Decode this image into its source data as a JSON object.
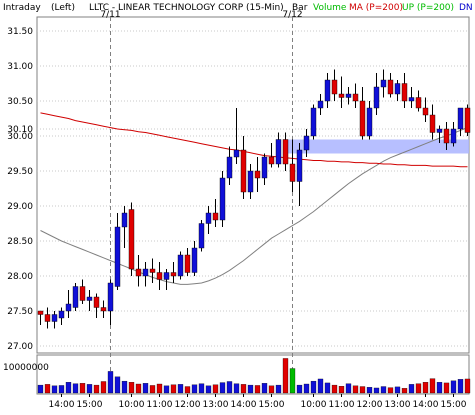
{
  "header": {
    "interval": "Intraday",
    "axis_side": "(Left)",
    "title": "LLTC - LINEAR TECHNOLOGY CORP (15-Min)",
    "bar_label": "Bar",
    "volume_label": "Volume",
    "ma_label": "MA (P=200)",
    "up_label": "UP (P=200)",
    "dn_label": "DN"
  },
  "colors": {
    "up_candle": "#1010d8",
    "down_candle": "#e00000",
    "ma": "#d00000",
    "up_band": "#808080",
    "band_fill": "#aab4ff",
    "volume_green": "#00bb00",
    "grid": "#c8c8c8",
    "separator": "#808080"
  },
  "chart_data": {
    "type": "candlestick",
    "title": "LLTC - LINEAR TECHNOLOGY CORP (15-Min)",
    "ylim": [
      26.9,
      31.7
    ],
    "yticks": [
      "31.50",
      "31.00",
      "30.50",
      "30.10",
      "30.00",
      "29.50",
      "29.00",
      "28.50",
      "28.00",
      "27.50",
      "27.00"
    ],
    "ytick_values": [
      31.5,
      31.0,
      30.5,
      30.1,
      30.0,
      29.5,
      29.0,
      28.5,
      28.0,
      27.5,
      27.0
    ],
    "xticks": [
      "14:00",
      "15:00",
      "10:00",
      "11:00",
      "12:00",
      "13:00",
      "14:00",
      "15:00",
      "10:00",
      "11:00",
      "12:00",
      "13:00",
      "14:00",
      "15:00"
    ],
    "xtick_bars": [
      3,
      7,
      13,
      17,
      21,
      25,
      29,
      33,
      39,
      43,
      47,
      51,
      55,
      59
    ],
    "session_markers": [
      {
        "label": "7/11",
        "bar": 10
      },
      {
        "label": "7/12",
        "bar": 36
      }
    ],
    "candles": [
      [
        27.5,
        27.48,
        27.3,
        27.45
      ],
      [
        27.45,
        27.55,
        27.25,
        27.35
      ],
      [
        27.35,
        27.5,
        27.25,
        27.45
      ],
      [
        27.4,
        27.55,
        27.3,
        27.5
      ],
      [
        27.5,
        27.8,
        27.4,
        27.6
      ],
      [
        27.55,
        27.9,
        27.5,
        27.85
      ],
      [
        27.85,
        27.95,
        27.6,
        27.65
      ],
      [
        27.65,
        27.8,
        27.5,
        27.7
      ],
      [
        27.7,
        27.75,
        27.4,
        27.55
      ],
      [
        27.55,
        27.65,
        27.4,
        27.5
      ],
      [
        27.5,
        27.95,
        27.3,
        27.9
      ],
      [
        27.85,
        28.9,
        27.8,
        28.7
      ],
      [
        28.7,
        29.0,
        28.4,
        28.9
      ],
      [
        28.95,
        29.05,
        28.0,
        28.1
      ],
      [
        28.1,
        28.3,
        27.85,
        28.0
      ],
      [
        28.0,
        28.2,
        27.85,
        28.1
      ],
      [
        28.1,
        28.25,
        27.9,
        28.05
      ],
      [
        28.05,
        28.2,
        27.8,
        27.95
      ],
      [
        27.95,
        28.1,
        27.8,
        28.05
      ],
      [
        28.05,
        28.2,
        27.9,
        28.0
      ],
      [
        28.0,
        28.35,
        27.95,
        28.3
      ],
      [
        28.3,
        28.4,
        28.0,
        28.05
      ],
      [
        28.05,
        28.5,
        28.0,
        28.4
      ],
      [
        28.4,
        28.8,
        28.35,
        28.75
      ],
      [
        28.75,
        29.0,
        28.6,
        28.9
      ],
      [
        28.9,
        29.1,
        28.7,
        28.8
      ],
      [
        28.8,
        29.5,
        28.7,
        29.4
      ],
      [
        29.4,
        29.85,
        29.3,
        29.7
      ],
      [
        29.7,
        30.4,
        29.6,
        29.8
      ],
      [
        29.8,
        30.0,
        29.1,
        29.2
      ],
      [
        29.2,
        29.6,
        29.1,
        29.5
      ],
      [
        29.5,
        29.7,
        29.2,
        29.4
      ],
      [
        29.4,
        29.75,
        29.3,
        29.7
      ],
      [
        29.7,
        29.9,
        29.55,
        29.6
      ],
      [
        29.6,
        30.05,
        29.55,
        29.95
      ],
      [
        29.95,
        30.05,
        29.5,
        29.6
      ],
      [
        29.6,
        29.95,
        29.2,
        29.35
      ],
      [
        29.35,
        29.9,
        29.0,
        29.8
      ],
      [
        29.8,
        30.1,
        29.7,
        30.0
      ],
      [
        30.0,
        30.45,
        29.95,
        30.4
      ],
      [
        30.4,
        30.6,
        30.3,
        30.5
      ],
      [
        30.5,
        30.9,
        30.4,
        30.8
      ],
      [
        30.8,
        30.95,
        30.5,
        30.6
      ],
      [
        30.6,
        30.85,
        30.4,
        30.55
      ],
      [
        30.55,
        30.7,
        30.45,
        30.6
      ],
      [
        30.6,
        30.75,
        30.4,
        30.5
      ],
      [
        30.5,
        30.7,
        29.95,
        30.0
      ],
      [
        30.0,
        30.5,
        29.95,
        30.4
      ],
      [
        30.4,
        30.9,
        30.3,
        30.7
      ],
      [
        30.7,
        30.95,
        30.55,
        30.8
      ],
      [
        30.8,
        30.9,
        30.55,
        30.6
      ],
      [
        30.6,
        30.8,
        30.5,
        30.75
      ],
      [
        30.75,
        30.9,
        30.4,
        30.5
      ],
      [
        30.5,
        30.7,
        30.4,
        30.55
      ],
      [
        30.55,
        30.65,
        30.35,
        30.4
      ],
      [
        30.4,
        30.55,
        30.2,
        30.3
      ],
      [
        30.3,
        30.45,
        29.95,
        30.05
      ],
      [
        30.05,
        30.15,
        29.9,
        30.1
      ],
      [
        30.1,
        30.2,
        29.8,
        29.9
      ],
      [
        29.9,
        30.2,
        29.85,
        30.1
      ],
      [
        30.1,
        30.4,
        30.0,
        30.4
      ],
      [
        30.4,
        30.45,
        30.0,
        30.05
      ]
    ],
    "ma": [
      30.33,
      30.31,
      30.29,
      30.27,
      30.25,
      30.22,
      30.2,
      30.18,
      30.16,
      30.14,
      30.12,
      30.1,
      30.09,
      30.08,
      30.06,
      30.05,
      30.03,
      30.01,
      29.99,
      29.97,
      29.95,
      29.93,
      29.91,
      29.89,
      29.87,
      29.85,
      29.83,
      29.81,
      29.8,
      29.78,
      29.76,
      29.74,
      29.72,
      29.71,
      29.7,
      29.69,
      29.68,
      29.67,
      29.66,
      29.65,
      29.65,
      29.64,
      29.64,
      29.63,
      29.63,
      29.62,
      29.62,
      29.61,
      29.61,
      29.6,
      29.6,
      29.59,
      29.59,
      29.58,
      29.58,
      29.58,
      29.57,
      29.57,
      29.57,
      29.57,
      29.56,
      29.56
    ],
    "up_band": [
      28.65,
      28.6,
      28.55,
      28.5,
      28.46,
      28.42,
      28.38,
      28.34,
      28.3,
      28.26,
      28.22,
      28.18,
      28.14,
      28.1,
      28.06,
      28.02,
      27.98,
      27.95,
      27.92,
      27.9,
      27.88,
      27.88,
      27.89,
      27.9,
      27.93,
      27.97,
      28.02,
      28.08,
      28.15,
      28.22,
      28.3,
      28.38,
      28.46,
      28.54,
      28.6,
      28.66,
      28.72,
      28.78,
      28.85,
      28.92,
      29.0,
      29.08,
      29.16,
      29.24,
      29.32,
      29.39,
      29.46,
      29.52,
      29.58,
      29.64,
      29.69,
      29.73,
      29.77,
      29.81,
      29.85,
      29.89,
      29.93,
      29.97,
      30.0,
      30.04,
      30.08,
      30.12
    ],
    "band_zone": [
      29.75,
      29.95
    ],
    "volume": {
      "max_label": "10000000",
      "values": [
        2.2,
        2.4,
        2.0,
        2.1,
        3.0,
        2.6,
        2.7,
        2.4,
        2.2,
        3.2,
        6.0,
        4.5,
        3.3,
        3.0,
        2.5,
        2.7,
        2.1,
        2.5,
        2.0,
        2.3,
        2.4,
        1.8,
        2.3,
        2.6,
        2.0,
        2.3,
        2.9,
        3.2,
        2.6,
        2.4,
        2.2,
        2.1,
        2.7,
        2.0,
        2.2,
        9.6,
        6.8,
        2.2,
        2.5,
        3.3,
        3.9,
        2.8,
        2.2,
        1.9,
        2.6,
        2.0,
        1.8,
        1.6,
        1.4,
        1.8,
        1.5,
        1.7,
        1.3,
        2.4,
        2.6,
        3.0,
        4.0,
        3.0,
        2.8,
        3.4,
        3.8,
        3.9
      ],
      "green_bar": 36
    }
  }
}
